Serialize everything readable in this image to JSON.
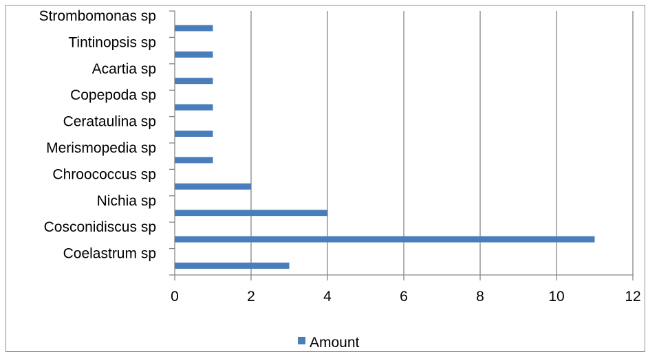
{
  "chart_data": {
    "type": "bar",
    "orientation": "horizontal",
    "categories": [
      "Coelastrum sp",
      "Cosconidiscus sp",
      "Nichia sp",
      "Chroococcus sp",
      "Merismopedia sp",
      "Cerataulina sp",
      "Copepoda sp",
      "Acartia sp",
      "Tintinopsis sp",
      "Strombomonas sp"
    ],
    "series": [
      {
        "name": "Amount",
        "values": [
          3,
          11,
          4,
          2,
          1,
          1,
          1,
          1,
          1,
          1
        ],
        "color": "#4a7ebb"
      }
    ],
    "xlim": [
      0,
      12
    ],
    "xticks": [
      0,
      2,
      4,
      6,
      8,
      10,
      12
    ],
    "grid": "vertical",
    "legend_position": "bottom",
    "gridline_color": "#868686",
    "axis_color": "#868686"
  }
}
